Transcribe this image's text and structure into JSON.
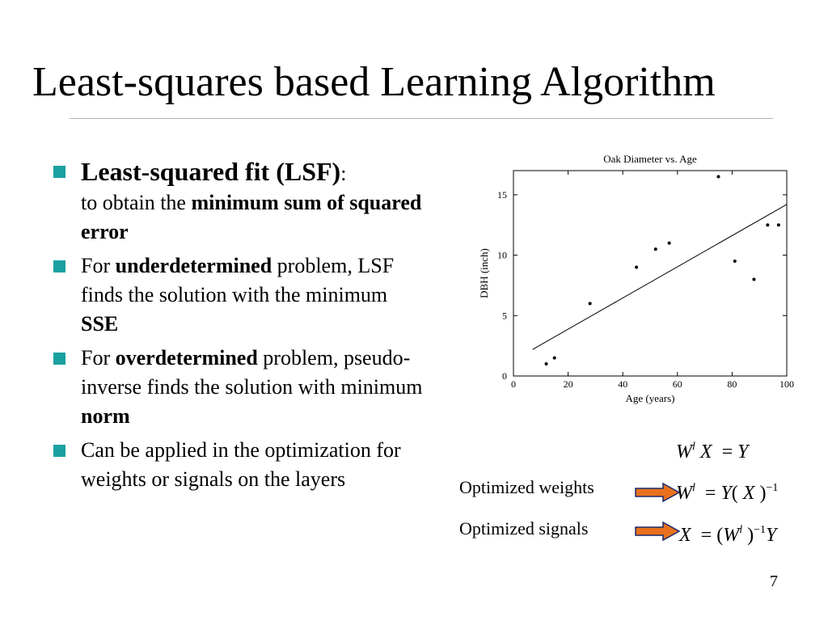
{
  "slide": {
    "title": "Least-squares based Learning Algorithm",
    "page_number": "7"
  },
  "bullets": {
    "b1": {
      "bold": "Least-squared fit (LSF)",
      "colon": ":",
      "text1": "to obtain the ",
      "bold2": "minimum sum of squared error"
    },
    "b2": {
      "text1": "For ",
      "bold1": "underdetermined",
      "text2": " problem, LSF finds the solution with the minimum ",
      "bold2": "SSE"
    },
    "b3": {
      "text1": "For ",
      "bold1": "overdetermined",
      "text2": " problem, pseudo-inverse finds the solution with minimum ",
      "bold2": "norm"
    },
    "b4": {
      "text1": "Can be applied in the optimization for weights or signals on the layers"
    }
  },
  "equations": {
    "eq1": {
      "W": "W",
      "l": "l",
      "X": "X",
      "eq": "=",
      "Y": "Y"
    },
    "eq2": {
      "W": "W",
      "l": "l",
      "eq": "=",
      "Y": "Y",
      "lp": "(",
      "X": "X",
      "rp": ")",
      "exp": "−1"
    },
    "eq3": {
      "X": "X",
      "eq": "=",
      "lp": "(",
      "W": "W",
      "l": "l",
      "rp": ")",
      "exp": "−1",
      "Y": "Y"
    }
  },
  "labels": {
    "weights": "Optimized weights",
    "signals": "Optimized signals"
  },
  "colors": {
    "bullet": "#1aa0a0",
    "arrow": "#e8701e"
  },
  "chart_data": {
    "type": "scatter",
    "title": "Oak Diameter vs. Age",
    "xlabel": "Age (years)",
    "ylabel": "DBH (inch)",
    "xlim": [
      0,
      100
    ],
    "ylim": [
      0,
      17
    ],
    "xticks": [
      0,
      20,
      40,
      60,
      80,
      100
    ],
    "yticks": [
      0,
      5,
      10,
      15
    ],
    "points": [
      {
        "x": 12,
        "y": 1
      },
      {
        "x": 15,
        "y": 1.5
      },
      {
        "x": 28,
        "y": 6
      },
      {
        "x": 45,
        "y": 9
      },
      {
        "x": 52,
        "y": 10.5
      },
      {
        "x": 57,
        "y": 11
      },
      {
        "x": 75,
        "y": 16.5
      },
      {
        "x": 81,
        "y": 9.5
      },
      {
        "x": 88,
        "y": 8
      },
      {
        "x": 93,
        "y": 12.5
      },
      {
        "x": 97,
        "y": 12.5
      }
    ],
    "fit_line": {
      "x": [
        7,
        100
      ],
      "y": [
        2.2,
        14.2
      ]
    }
  }
}
